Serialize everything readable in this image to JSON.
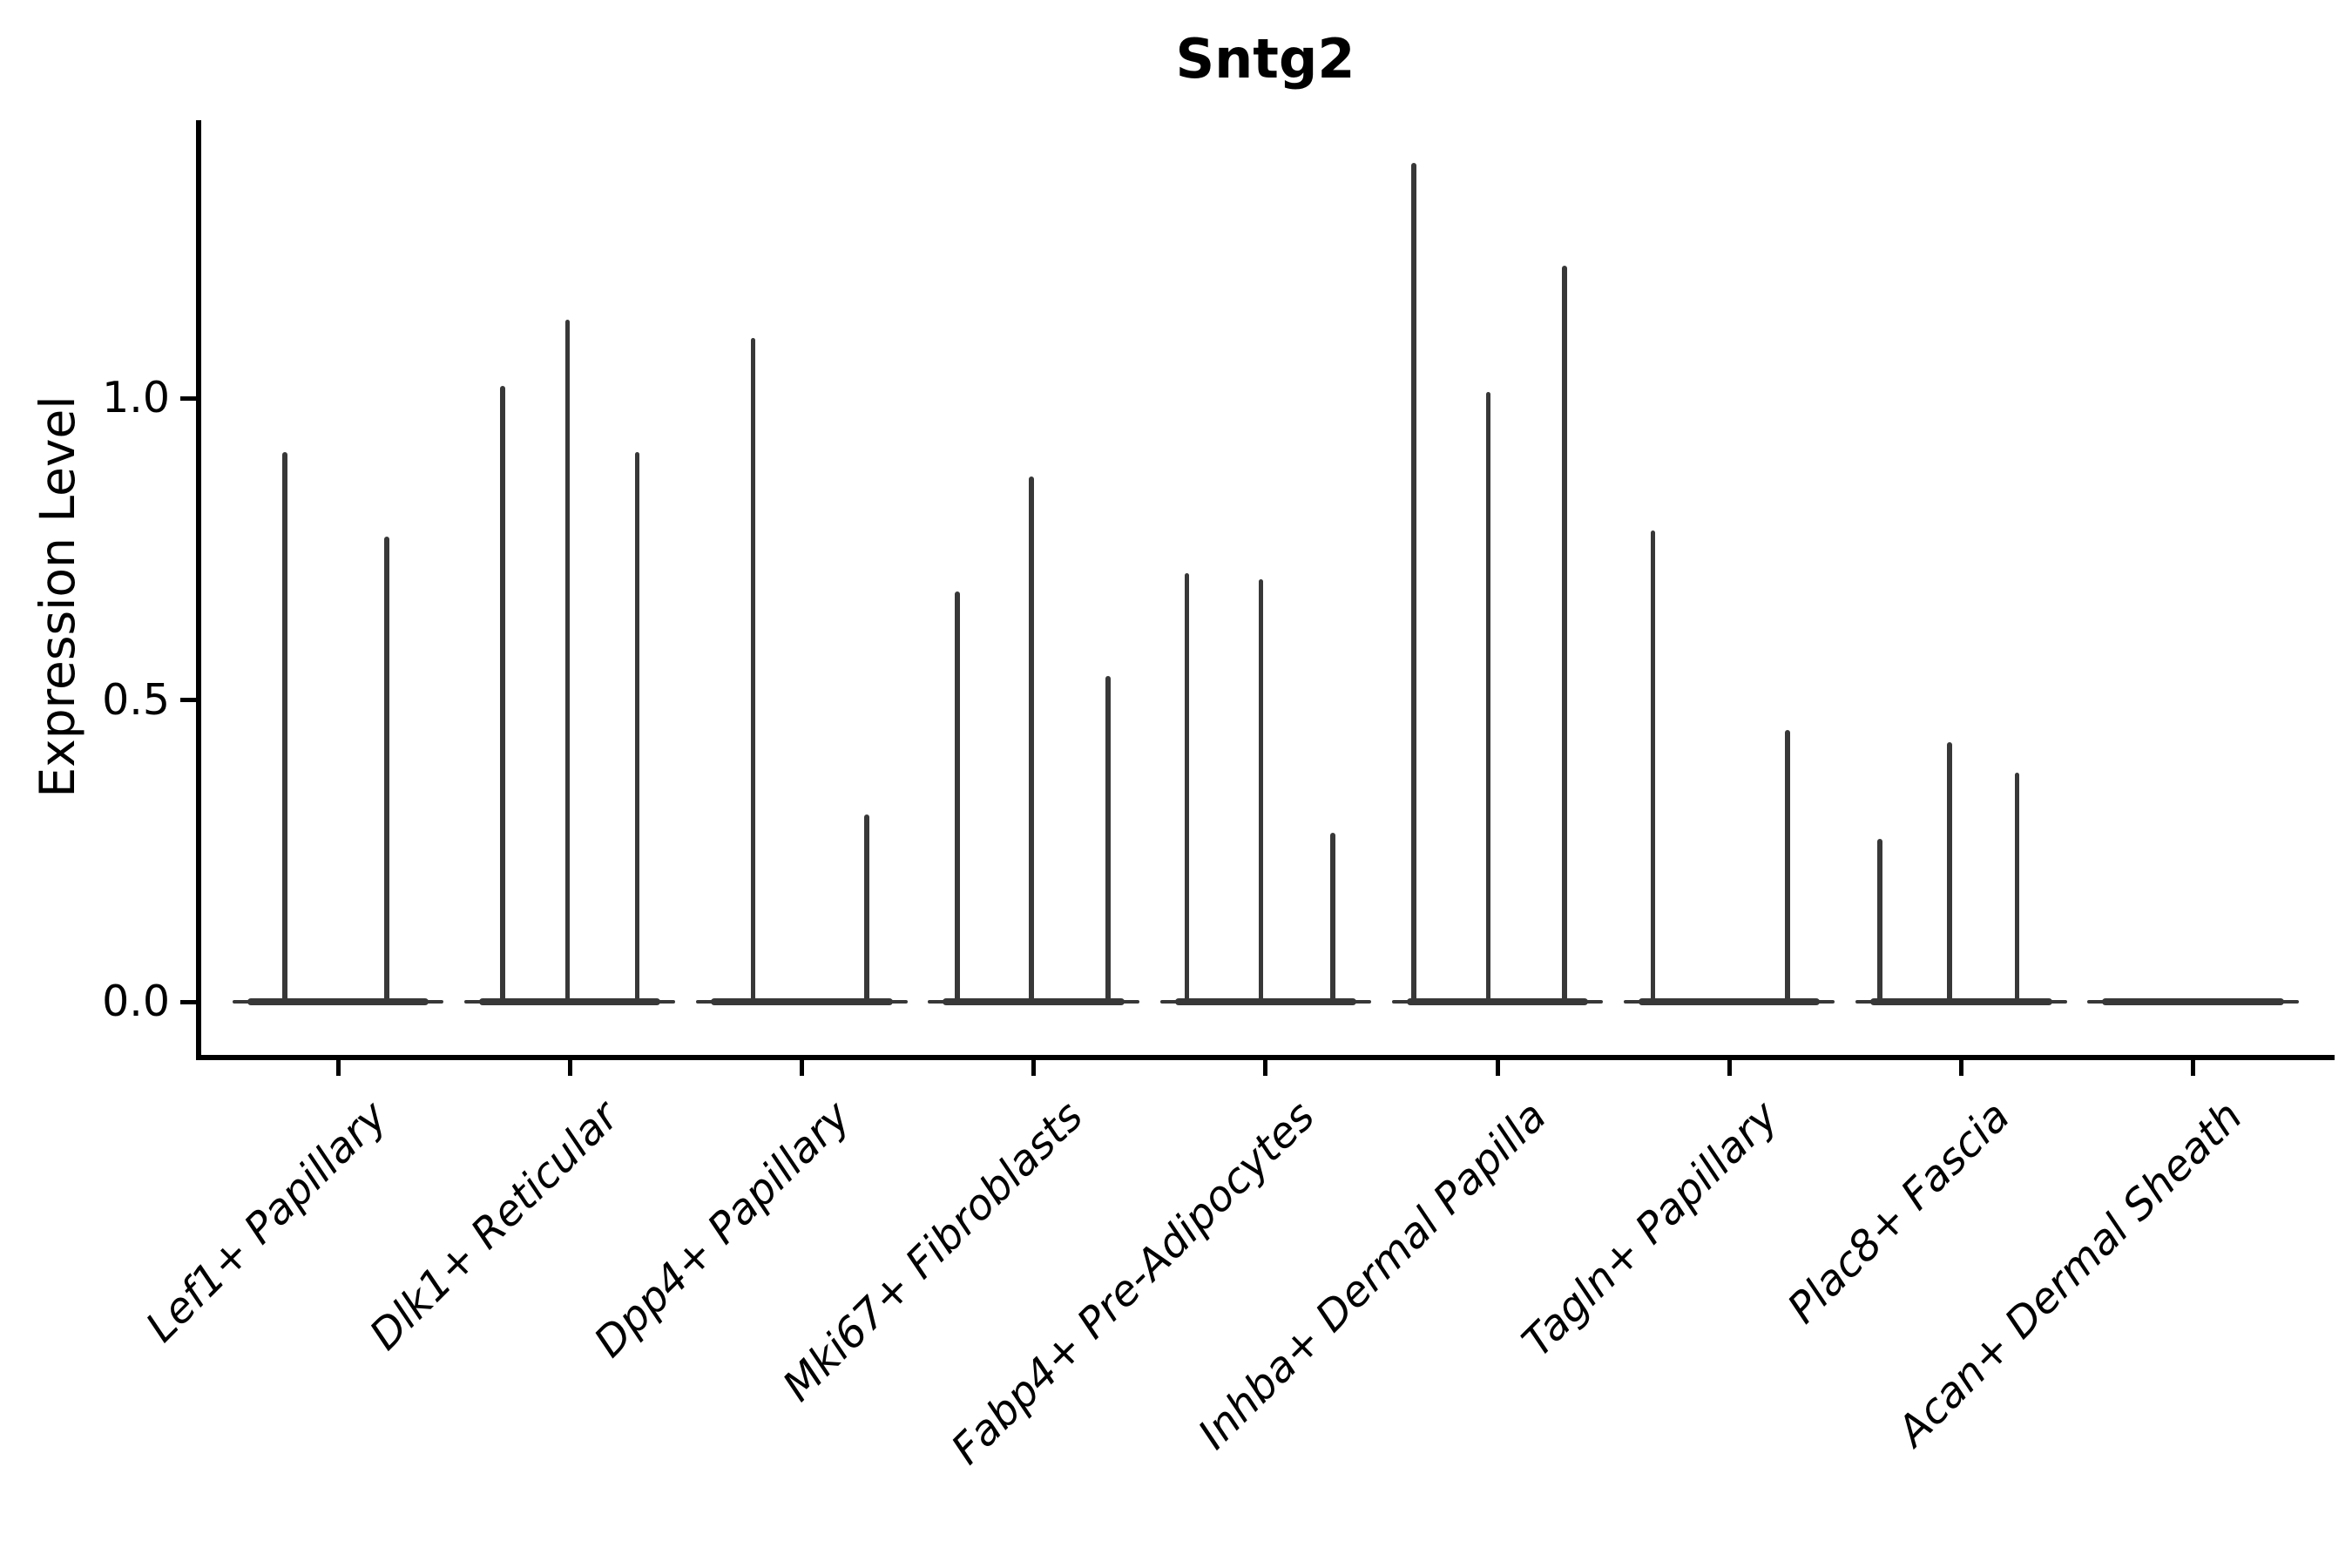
{
  "figure": {
    "title": "Sntg2",
    "ylabel": "Expression Level"
  },
  "chart_data": {
    "type": "violin",
    "title": "Sntg2",
    "xlabel": "",
    "ylabel": "Expression Level",
    "ylim": [
      -0.09,
      1.47
    ],
    "yticks": [
      0.0,
      0.5,
      1.0
    ],
    "ytick_labels": [
      "0.0",
      "0.5",
      "1.0"
    ],
    "grid": false,
    "legend": false,
    "categories": [
      "Lef1+ Papillary",
      "Dlk1+ Reticular",
      "Dpp4+ Papillary",
      "Mki67+ Fibroblasts",
      "Fabp4+ Pre-Adipocytes",
      "Inhba+ Dermal Papilla",
      "Tagln+ Papillary",
      "Plac8+ Fascia",
      "Acan+ Dermal Sheath"
    ],
    "violins": [
      {
        "category": "Lef1+ Papillary",
        "body_halfwidth": 0.455,
        "spikes": [
          {
            "x_offset": -0.23,
            "value": 0.91
          },
          {
            "x_offset": 0.21,
            "value": 0.77
          }
        ]
      },
      {
        "category": "Dlk1+ Reticular",
        "body_halfwidth": 0.455,
        "spikes": [
          {
            "x_offset": -0.29,
            "value": 1.02
          },
          {
            "x_offset": -0.01,
            "value": 1.13
          },
          {
            "x_offset": 0.29,
            "value": 0.91
          }
        ]
      },
      {
        "category": "Dpp4+ Papillary",
        "body_halfwidth": 0.455,
        "spikes": [
          {
            "x_offset": -0.21,
            "value": 1.1
          },
          {
            "x_offset": 0.28,
            "value": 0.31
          }
        ]
      },
      {
        "category": "Mki67+ Fibroblasts",
        "body_halfwidth": 0.455,
        "spikes": [
          {
            "x_offset": -0.33,
            "value": 0.68
          },
          {
            "x_offset": -0.01,
            "value": 0.87
          },
          {
            "x_offset": 0.32,
            "value": 0.54
          }
        ]
      },
      {
        "category": "Fabp4+ Pre-Adipocytes",
        "body_halfwidth": 0.455,
        "spikes": [
          {
            "x_offset": -0.34,
            "value": 0.71
          },
          {
            "x_offset": -0.02,
            "value": 0.7
          },
          {
            "x_offset": 0.29,
            "value": 0.28
          }
        ]
      },
      {
        "category": "Inhba+ Dermal Papilla",
        "body_halfwidth": 0.455,
        "spikes": [
          {
            "x_offset": -0.36,
            "value": 1.39
          },
          {
            "x_offset": -0.04,
            "value": 1.01
          },
          {
            "x_offset": 0.29,
            "value": 1.22
          }
        ]
      },
      {
        "category": "Tagln+ Papillary",
        "body_halfwidth": 0.455,
        "spikes": [
          {
            "x_offset": -0.33,
            "value": 0.78
          },
          {
            "x_offset": 0.25,
            "value": 0.45
          }
        ]
      },
      {
        "category": "Plac8+ Fascia",
        "body_halfwidth": 0.455,
        "spikes": [
          {
            "x_offset": -0.35,
            "value": 0.27
          },
          {
            "x_offset": -0.05,
            "value": 0.43
          },
          {
            "x_offset": 0.24,
            "value": 0.38
          }
        ]
      },
      {
        "category": "Acan+ Dermal Sheath",
        "body_halfwidth": 0.455,
        "spikes": []
      }
    ],
    "colors": {
      "violin": "#383838",
      "axis": "#000000",
      "text": "#000000",
      "background": "#ffffff"
    }
  }
}
